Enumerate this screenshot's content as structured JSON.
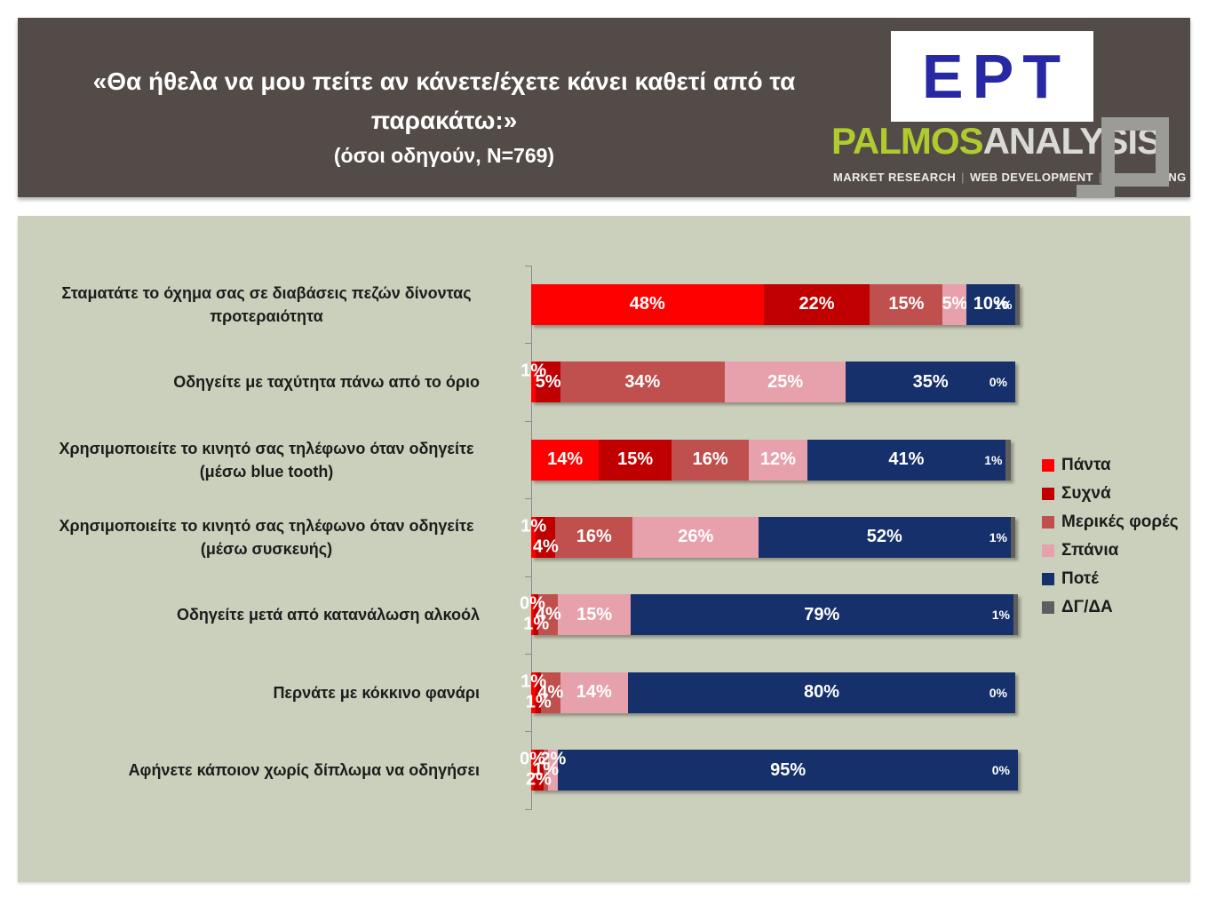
{
  "header": {
    "logo": {
      "ert": "ΕΡΤ",
      "palmos": "PALMOS",
      "analysis": "ANALYSIS",
      "tagline_parts": [
        "MARKET RESEARCH",
        "WEB DEVELOPMENT",
        "CONSULTING"
      ]
    }
  },
  "chart_data": {
    "type": "bar",
    "orientation": "horizontal",
    "stacked": true,
    "title": "«Θα ήθελα να μου πείτε αν κάνετε/έχετε κάνει καθετί από τα παρακάτω:»",
    "subtitle": "(όσοι οδηγούν, N=769)",
    "unit": "%",
    "xlim": [
      0,
      100
    ],
    "grid": false,
    "legend_position": "right",
    "categories": [
      "Σταματάτε το όχημα σας σε διαβάσεις πεζών δίνοντας προτεραιότητα",
      "Οδηγείτε με ταχύτητα πάνω από το όριο",
      "Χρησιμοποιείτε το κινητό σας τηλέφωνο όταν οδηγείτε (μέσω blue tooth)",
      "Χρησιμοποιείτε το κινητό σας τηλέφωνο όταν οδηγείτε (μέσω συσκευής)",
      "Οδηγείτε μετά από κατανάλωση αλκοόλ",
      "Περνάτε με κόκκινο φανάρι",
      "Αφήνετε κάποιον χωρίς δίπλωμα να οδηγήσει"
    ],
    "series": [
      {
        "name": "Πάντα",
        "key": "panta",
        "color": "#FE0000",
        "values": [
          48,
          1,
          14,
          1,
          0,
          1,
          0
        ]
      },
      {
        "name": "Συχνά",
        "key": "syxna",
        "color": "#C00000",
        "values": [
          22,
          5,
          15,
          4,
          1,
          1,
          2
        ]
      },
      {
        "name": "Μερικές φορές",
        "key": "merikes-fores",
        "color": "#C0504D",
        "values": [
          15,
          34,
          16,
          16,
          4,
          4,
          1
        ]
      },
      {
        "name": "Σπάνια",
        "key": "spania",
        "color": "#E7A1AC",
        "values": [
          5,
          25,
          12,
          26,
          15,
          14,
          2
        ]
      },
      {
        "name": "Ποτέ",
        "key": "pote",
        "color": "#16306B",
        "values": [
          10,
          35,
          41,
          52,
          79,
          80,
          95
        ]
      },
      {
        "name": "ΔΓ/ΔΑ",
        "key": "dg-da",
        "color": "#5E5E5E",
        "values": [
          1,
          0,
          1,
          1,
          1,
          0,
          0
        ]
      }
    ],
    "value_labels": "percent"
  },
  "colors": {
    "page_bg": "#FFFFFF",
    "header_bg": "#534B48",
    "chart_bg": "#CBD0BC",
    "axis": "#8C8C8C",
    "title_text": "#FFFFFF",
    "category_text": "#1C1C1C",
    "ert_blue": "#2728A4",
    "palmos_lime": "#AFCB2D"
  }
}
